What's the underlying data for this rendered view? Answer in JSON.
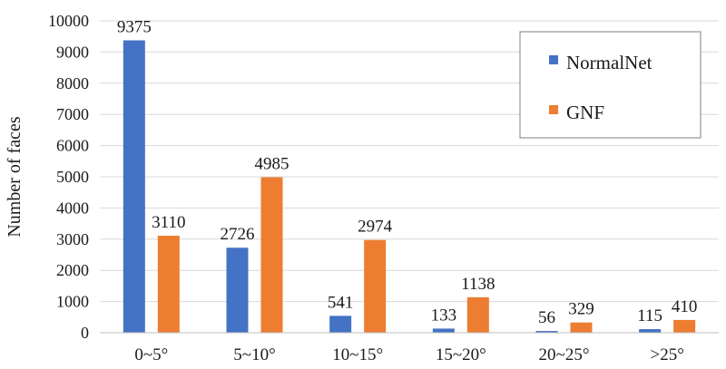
{
  "chart_data": {
    "type": "bar",
    "title": "",
    "xlabel": "",
    "ylabel": "Number of faces",
    "ylim": [
      0,
      10000
    ],
    "yticks": [
      0,
      1000,
      2000,
      3000,
      4000,
      5000,
      6000,
      7000,
      8000,
      9000,
      10000
    ],
    "grid": true,
    "legend_position": "top-right",
    "categories": [
      "0~5°",
      "5~10°",
      "10~15°",
      "15~20°",
      "20~25°",
      ">25°"
    ],
    "series": [
      {
        "name": "NormalNet",
        "color": "#4472C4",
        "values": [
          9375,
          2726,
          541,
          133,
          56,
          115
        ]
      },
      {
        "name": "GNF",
        "color": "#ED7D31",
        "values": [
          3110,
          4985,
          2974,
          1138,
          329,
          410
        ]
      }
    ]
  }
}
